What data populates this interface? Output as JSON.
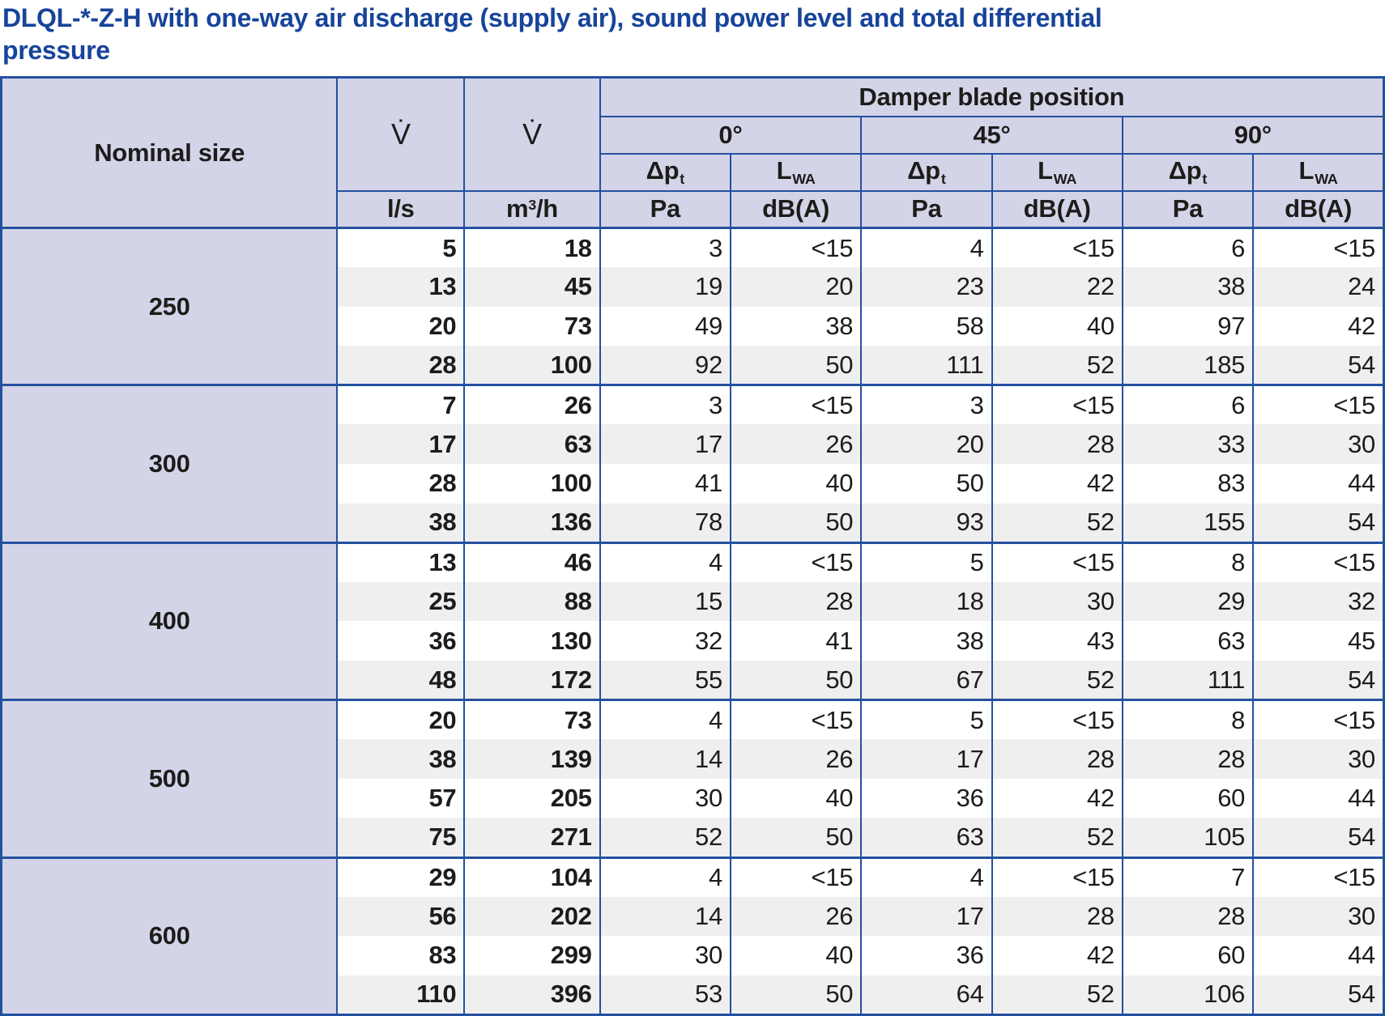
{
  "title_lines": [
    "DLQL-*-Z-H with one-way air discharge (supply air), sound power level and total differential",
    "pressure"
  ],
  "colors": {
    "title_color": "#17449a",
    "border_color": "#2450a0",
    "header_bg": "#d4d4e8",
    "alt_row_bg": "#efefef",
    "text_color": "#1c1c1a"
  },
  "table": {
    "header": {
      "nominal_size": "Nominal size",
      "flow_symbol": "V̇",
      "damper": "Damper blade position",
      "angles": [
        "0°",
        "45°",
        "90°"
      ],
      "dp": {
        "main": "Δp",
        "sub": "t"
      },
      "lwa": {
        "main": "L",
        "sub": "WA"
      },
      "units": {
        "ls": "l/s",
        "m3h": {
          "base": "m",
          "sup": "3",
          "rest": "/h"
        },
        "pa": "Pa",
        "dba": "dB(A)"
      }
    },
    "groups": [
      {
        "size": "250",
        "rows": [
          [
            "5",
            "18",
            "3",
            "<15",
            "4",
            "<15",
            "6",
            "<15"
          ],
          [
            "13",
            "45",
            "19",
            "20",
            "23",
            "22",
            "38",
            "24"
          ],
          [
            "20",
            "73",
            "49",
            "38",
            "58",
            "40",
            "97",
            "42"
          ],
          [
            "28",
            "100",
            "92",
            "50",
            "111",
            "52",
            "185",
            "54"
          ]
        ]
      },
      {
        "size": "300",
        "rows": [
          [
            "7",
            "26",
            "3",
            "<15",
            "3",
            "<15",
            "6",
            "<15"
          ],
          [
            "17",
            "63",
            "17",
            "26",
            "20",
            "28",
            "33",
            "30"
          ],
          [
            "28",
            "100",
            "41",
            "40",
            "50",
            "42",
            "83",
            "44"
          ],
          [
            "38",
            "136",
            "78",
            "50",
            "93",
            "52",
            "155",
            "54"
          ]
        ]
      },
      {
        "size": "400",
        "rows": [
          [
            "13",
            "46",
            "4",
            "<15",
            "5",
            "<15",
            "8",
            "<15"
          ],
          [
            "25",
            "88",
            "15",
            "28",
            "18",
            "30",
            "29",
            "32"
          ],
          [
            "36",
            "130",
            "32",
            "41",
            "38",
            "43",
            "63",
            "45"
          ],
          [
            "48",
            "172",
            "55",
            "50",
            "67",
            "52",
            "111",
            "54"
          ]
        ]
      },
      {
        "size": "500",
        "rows": [
          [
            "20",
            "73",
            "4",
            "<15",
            "5",
            "<15",
            "8",
            "<15"
          ],
          [
            "38",
            "139",
            "14",
            "26",
            "17",
            "28",
            "28",
            "30"
          ],
          [
            "57",
            "205",
            "30",
            "40",
            "36",
            "42",
            "60",
            "44"
          ],
          [
            "75",
            "271",
            "52",
            "50",
            "63",
            "52",
            "105",
            "54"
          ]
        ]
      },
      {
        "size": "600",
        "rows": [
          [
            "29",
            "104",
            "4",
            "<15",
            "4",
            "<15",
            "7",
            "<15"
          ],
          [
            "56",
            "202",
            "14",
            "26",
            "17",
            "28",
            "28",
            "30"
          ],
          [
            "83",
            "299",
            "30",
            "40",
            "36",
            "42",
            "60",
            "44"
          ],
          [
            "110",
            "396",
            "53",
            "50",
            "64",
            "52",
            "106",
            "54"
          ]
        ]
      }
    ]
  }
}
